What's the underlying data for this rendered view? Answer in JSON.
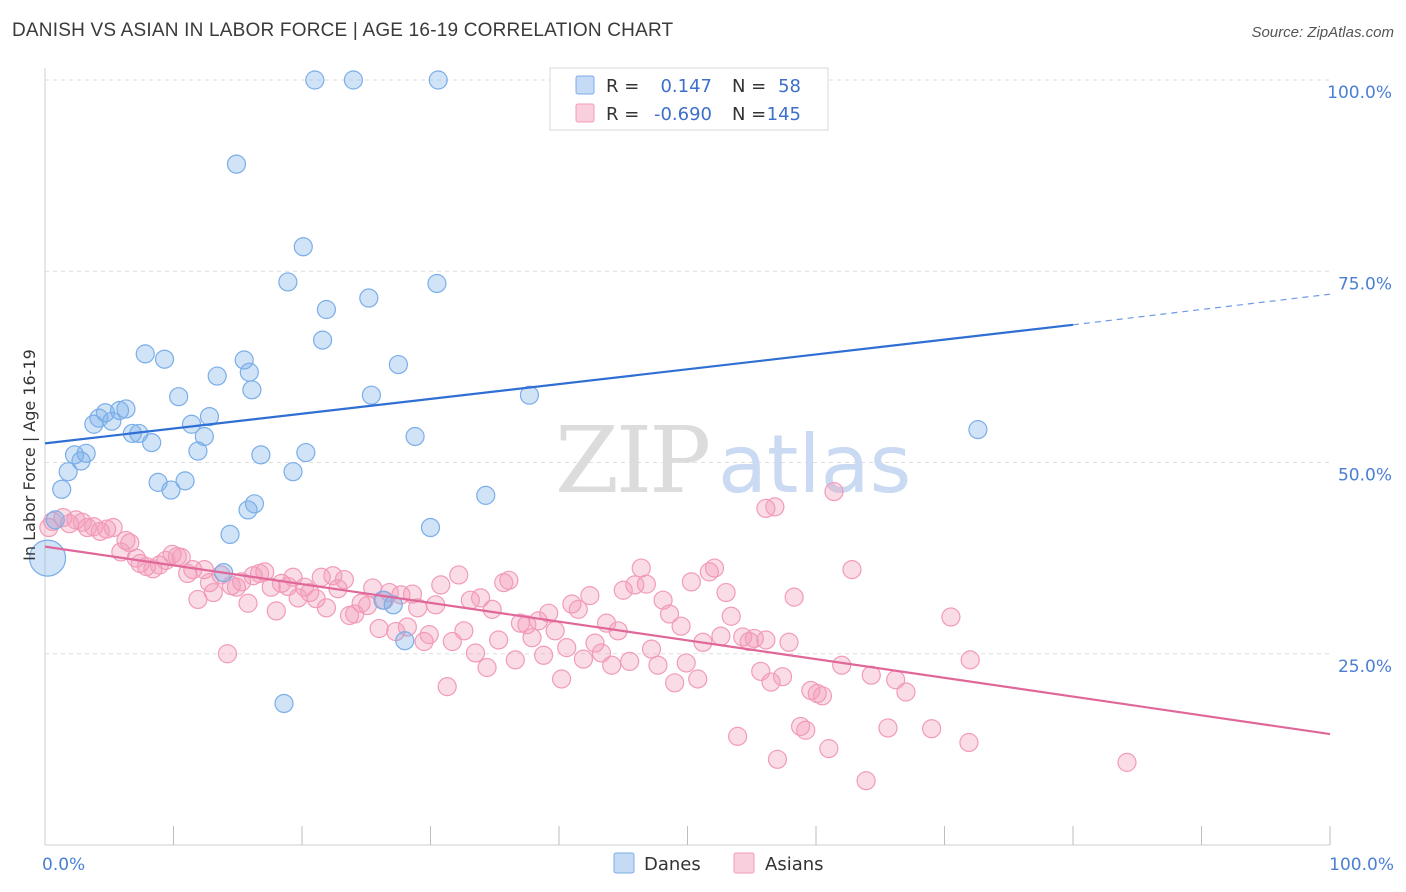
{
  "title": "DANISH VS ASIAN IN LABOR FORCE | AGE 16-19 CORRELATION CHART",
  "source": "Source: ZipAtlas.com",
  "watermark": {
    "zip": "ZIP",
    "atlas": "atlas"
  },
  "colors": {
    "danes": "#7aaee8",
    "danes_line": "#2f6fd4",
    "asians": "#f29bb8",
    "asians_line": "#e0679a",
    "tick": "#4a7fd4"
  },
  "chart_data": {
    "type": "scatter",
    "xlabel": "",
    "ylabel": "In Labor Force | Age 16-19",
    "xlim": [
      0,
      100
    ],
    "ylim": [
      0,
      100
    ],
    "x_tick_labels": [
      "0.0%",
      "100.0%"
    ],
    "y_ticks": [
      25,
      50,
      75,
      100
    ],
    "y_tick_labels": [
      "25.0%",
      "50.0%",
      "75.0%",
      "100.0%"
    ],
    "grid": true,
    "legend": {
      "position": "top-center",
      "rows": [
        {
          "r_label": "R =",
          "r_value": "0.147",
          "n_label": "N =",
          "n_value": "58"
        },
        {
          "r_label": "R =",
          "r_value": "-0.690",
          "n_label": "N =",
          "n_value": "145"
        }
      ]
    },
    "series": [
      {
        "name": "Danes",
        "trend": {
          "x0": 0,
          "y0": 52.5,
          "x1": 80,
          "y1": 68.0,
          "dashed_to": 100,
          "dashed_y": 72.0
        },
        "points": [
          [
            0.2,
            37.5
          ],
          [
            0.8,
            42.5
          ],
          [
            1.3,
            46.5
          ],
          [
            1.8,
            48.8
          ],
          [
            2.3,
            51.0
          ],
          [
            2.8,
            50.2
          ],
          [
            3.2,
            51.2
          ],
          [
            3.8,
            55.0
          ],
          [
            4.2,
            55.8
          ],
          [
            4.7,
            56.5
          ],
          [
            5.2,
            55.4
          ],
          [
            5.8,
            56.8
          ],
          [
            6.3,
            57.0
          ],
          [
            6.8,
            53.8
          ],
          [
            7.3,
            53.8
          ],
          [
            7.8,
            64.2
          ],
          [
            8.3,
            52.6
          ],
          [
            8.8,
            47.4
          ],
          [
            9.3,
            63.5
          ],
          [
            9.8,
            46.4
          ],
          [
            10.4,
            58.6
          ],
          [
            10.9,
            47.6
          ],
          [
            11.4,
            55.0
          ],
          [
            11.9,
            51.5
          ],
          [
            12.4,
            53.4
          ],
          [
            12.8,
            56.0
          ],
          [
            13.4,
            61.3
          ],
          [
            13.9,
            35.6
          ],
          [
            14.4,
            40.6
          ],
          [
            14.9,
            89.0
          ],
          [
            15.5,
            63.4
          ],
          [
            15.9,
            61.8
          ],
          [
            16.1,
            59.5
          ],
          [
            15.8,
            43.8
          ],
          [
            16.3,
            44.6
          ],
          [
            16.8,
            51.0
          ],
          [
            18.6,
            18.5
          ],
          [
            18.9,
            73.6
          ],
          [
            19.3,
            48.8
          ],
          [
            20.1,
            78.2
          ],
          [
            20.3,
            51.3
          ],
          [
            21.0,
            100
          ],
          [
            21.6,
            66.0
          ],
          [
            21.9,
            70.0
          ],
          [
            24.0,
            100
          ],
          [
            25.2,
            71.5
          ],
          [
            25.4,
            58.8
          ],
          [
            26.3,
            32.0
          ],
          [
            27.1,
            31.4
          ],
          [
            27.5,
            62.8
          ],
          [
            28.0,
            26.7
          ],
          [
            28.8,
            53.4
          ],
          [
            30.0,
            41.5
          ],
          [
            30.5,
            73.4
          ],
          [
            30.6,
            100
          ],
          [
            34.3,
            45.7
          ],
          [
            37.7,
            58.8
          ],
          [
            72.6,
            54.3
          ]
        ]
      },
      {
        "name": "Asians",
        "trend": {
          "x0": 0,
          "y0": 39.0,
          "x1": 100,
          "y1": 14.5
        },
        "points": [
          [
            0.3,
            41.5
          ],
          [
            0.6,
            42.3
          ],
          [
            1.4,
            42.8
          ],
          [
            1.9,
            42.0
          ],
          [
            2.4,
            42.5
          ],
          [
            2.9,
            42.2
          ],
          [
            3.3,
            41.5
          ],
          [
            3.8,
            41.6
          ],
          [
            4.3,
            41.0
          ],
          [
            4.8,
            41.3
          ],
          [
            5.3,
            41.5
          ],
          [
            5.9,
            38.3
          ],
          [
            6.3,
            39.8
          ],
          [
            6.6,
            39.5
          ],
          [
            7.1,
            37.5
          ],
          [
            7.4,
            36.8
          ],
          [
            7.9,
            36.4
          ],
          [
            8.4,
            36.1
          ],
          [
            8.9,
            36.6
          ],
          [
            9.4,
            37.2
          ],
          [
            9.9,
            38.0
          ],
          [
            10.3,
            37.7
          ],
          [
            10.6,
            37.6
          ],
          [
            11.1,
            35.5
          ],
          [
            11.5,
            36.0
          ],
          [
            11.9,
            32.1
          ],
          [
            12.4,
            36.0
          ],
          [
            12.8,
            34.3
          ],
          [
            13.1,
            33.0
          ],
          [
            13.7,
            35.3
          ],
          [
            14.2,
            25.0
          ],
          [
            14.5,
            33.9
          ],
          [
            14.9,
            33.7
          ],
          [
            15.3,
            34.4
          ],
          [
            15.8,
            31.6
          ],
          [
            16.2,
            35.2
          ],
          [
            16.7,
            35.5
          ],
          [
            17.1,
            35.7
          ],
          [
            17.6,
            33.7
          ],
          [
            18.0,
            30.6
          ],
          [
            18.4,
            34.2
          ],
          [
            18.9,
            33.8
          ],
          [
            19.3,
            35.0
          ],
          [
            19.7,
            32.3
          ],
          [
            20.2,
            33.7
          ],
          [
            20.6,
            33.0
          ],
          [
            21.1,
            32.2
          ],
          [
            21.5,
            35.0
          ],
          [
            21.9,
            31.0
          ],
          [
            22.4,
            35.2
          ],
          [
            22.8,
            33.5
          ],
          [
            23.3,
            34.7
          ],
          [
            23.7,
            30.0
          ],
          [
            24.1,
            30.2
          ],
          [
            24.6,
            31.6
          ],
          [
            25.1,
            31.3
          ],
          [
            25.5,
            33.6
          ],
          [
            26.0,
            28.3
          ],
          [
            26.4,
            32.0
          ],
          [
            26.8,
            33.0
          ],
          [
            27.3,
            27.9
          ],
          [
            27.7,
            32.7
          ],
          [
            28.2,
            28.5
          ],
          [
            28.6,
            32.8
          ],
          [
            29.0,
            31.0
          ],
          [
            29.5,
            26.6
          ],
          [
            29.9,
            27.5
          ],
          [
            30.4,
            31.4
          ],
          [
            30.8,
            34.0
          ],
          [
            31.3,
            20.7
          ],
          [
            31.7,
            26.6
          ],
          [
            32.2,
            35.3
          ],
          [
            32.6,
            28.0
          ],
          [
            33.1,
            32.0
          ],
          [
            33.5,
            25.1
          ],
          [
            33.9,
            32.3
          ],
          [
            34.4,
            23.2
          ],
          [
            34.8,
            30.8
          ],
          [
            35.3,
            26.8
          ],
          [
            35.7,
            34.3
          ],
          [
            36.1,
            34.6
          ],
          [
            36.6,
            24.2
          ],
          [
            37.0,
            29.0
          ],
          [
            37.5,
            28.8
          ],
          [
            37.9,
            27.1
          ],
          [
            38.4,
            29.3
          ],
          [
            38.8,
            24.8
          ],
          [
            39.2,
            30.3
          ],
          [
            39.7,
            28.0
          ],
          [
            40.2,
            21.7
          ],
          [
            40.6,
            25.8
          ],
          [
            41.0,
            31.5
          ],
          [
            41.5,
            30.8
          ],
          [
            41.9,
            24.3
          ],
          [
            42.4,
            32.6
          ],
          [
            42.8,
            26.4
          ],
          [
            43.3,
            25.1
          ],
          [
            43.7,
            29.0
          ],
          [
            44.1,
            23.5
          ],
          [
            44.6,
            28.0
          ],
          [
            45.0,
            33.3
          ],
          [
            45.5,
            24.0
          ],
          [
            45.9,
            34.0
          ],
          [
            46.4,
            36.2
          ],
          [
            46.8,
            34.1
          ],
          [
            47.2,
            25.6
          ],
          [
            47.7,
            23.5
          ],
          [
            48.1,
            32.0
          ],
          [
            48.6,
            30.2
          ],
          [
            49.0,
            21.2
          ],
          [
            49.5,
            28.6
          ],
          [
            49.9,
            23.8
          ],
          [
            50.3,
            34.4
          ],
          [
            50.8,
            21.7
          ],
          [
            51.2,
            26.5
          ],
          [
            51.7,
            35.7
          ],
          [
            52.1,
            36.2
          ],
          [
            52.6,
            27.3
          ],
          [
            53.0,
            33.0
          ],
          [
            53.4,
            29.9
          ],
          [
            53.9,
            14.2
          ],
          [
            54.3,
            27.2
          ],
          [
            54.8,
            26.6
          ],
          [
            55.2,
            27.0
          ],
          [
            55.7,
            22.7
          ],
          [
            56.1,
            26.8
          ],
          [
            56.5,
            21.3
          ],
          [
            57.0,
            11.2
          ],
          [
            57.4,
            22.0
          ],
          [
            57.9,
            26.5
          ],
          [
            58.3,
            32.4
          ],
          [
            58.8,
            15.5
          ],
          [
            59.2,
            15.0
          ],
          [
            59.6,
            20.2
          ],
          [
            60.1,
            19.8
          ],
          [
            60.5,
            19.5
          ],
          [
            61.0,
            12.6
          ],
          [
            62.0,
            23.5
          ],
          [
            62.8,
            36.0
          ],
          [
            61.4,
            46.2
          ],
          [
            56.8,
            44.2
          ],
          [
            56.1,
            44.0
          ],
          [
            63.9,
            8.4
          ],
          [
            64.3,
            22.2
          ],
          [
            65.6,
            15.3
          ],
          [
            66.2,
            21.6
          ],
          [
            67.0,
            20.0
          ],
          [
            69.0,
            15.2
          ],
          [
            70.5,
            29.8
          ],
          [
            71.9,
            13.4
          ],
          [
            72.0,
            24.2
          ],
          [
            84.2,
            10.8
          ]
        ]
      }
    ]
  },
  "bottom_legend": [
    "Danes",
    "Asians"
  ]
}
